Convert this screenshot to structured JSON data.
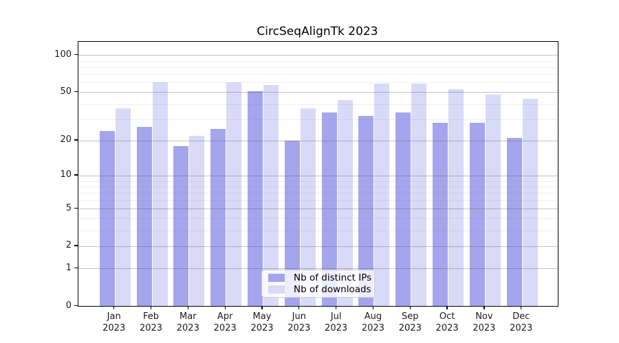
{
  "chart_data": {
    "type": "bar",
    "title": "CircSeqAlignTk 2023",
    "x_categories": [
      "Jan 2023",
      "Feb 2023",
      "Mar 2023",
      "Apr 2023",
      "May 2023",
      "Jun 2023",
      "Jul 2023",
      "Aug 2023",
      "Sep 2023",
      "Oct 2023",
      "Nov 2023",
      "Dec 2023"
    ],
    "series": [
      {
        "name": "Nb of distinct IPs",
        "color": "#a5a5ed",
        "values": [
          24,
          26,
          18,
          25,
          51,
          20,
          34,
          32,
          34,
          28,
          28,
          21
        ]
      },
      {
        "name": "Nb of downloads",
        "color": "#d9d9f8",
        "values": [
          37,
          60,
          22,
          60,
          57,
          37,
          43,
          59,
          59,
          53,
          48,
          44
        ]
      }
    ],
    "y_axis": {
      "ticks": [
        100,
        50,
        20,
        10,
        5,
        2,
        1,
        0
      ],
      "minor_ticks": [
        90,
        80,
        70,
        60,
        40,
        30,
        9,
        8,
        7,
        6,
        4,
        3
      ],
      "scale": "log10(1+v)",
      "range": [
        0,
        100
      ]
    },
    "x_axis": {
      "label": ""
    },
    "legend": {
      "position": "lower center",
      "entries": [
        "Nb of distinct IPs",
        "Nb of downloads"
      ]
    },
    "grid": true,
    "background_color": "#ffffff",
    "text_color": "#1a1a1a"
  }
}
